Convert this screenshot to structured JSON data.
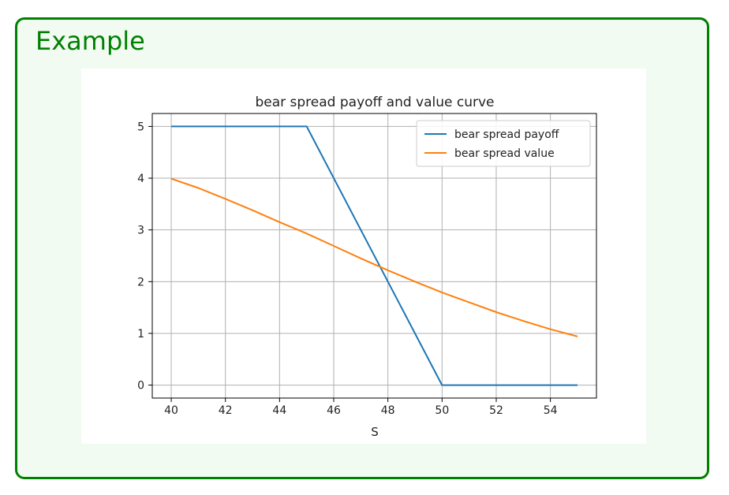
{
  "block": {
    "title": "Example"
  },
  "chart_data": {
    "type": "line",
    "title": "bear spread payoff and value curve",
    "xlabel": "S",
    "ylabel": "",
    "xlim": [
      39.3,
      55.7
    ],
    "ylim": [
      -0.25,
      5.25
    ],
    "xticks": [
      40,
      42,
      44,
      46,
      48,
      50,
      52,
      54
    ],
    "yticks": [
      0,
      1,
      2,
      3,
      4,
      5
    ],
    "grid": true,
    "legend": "top-right",
    "series": [
      {
        "name": "bear spread payoff",
        "color": "#1f77b4",
        "x": [
          40,
          45,
          50,
          55
        ],
        "y": [
          5,
          5,
          0,
          0
        ]
      },
      {
        "name": "bear spread value",
        "color": "#ff7f0e",
        "x": [
          40,
          41,
          42,
          43,
          44,
          45,
          46,
          47,
          48,
          49,
          50,
          51,
          52,
          53,
          54,
          55
        ],
        "y": [
          3.99,
          3.81,
          3.6,
          3.38,
          3.15,
          2.93,
          2.69,
          2.45,
          2.22,
          2.0,
          1.79,
          1.6,
          1.41,
          1.24,
          1.08,
          0.94
        ]
      }
    ]
  }
}
